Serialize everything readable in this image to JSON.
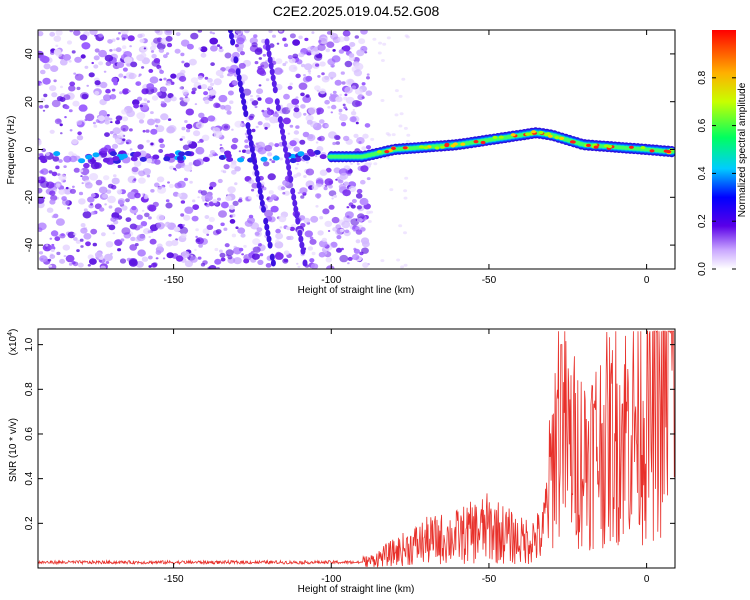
{
  "title": "C2E2.2025.019.04.52.G08",
  "colors": {
    "line": "#e8302a",
    "scatter_purple": "#8a2be2",
    "band_center": "#ff0000"
  },
  "chart_data": [
    {
      "type": "heatmap",
      "xlabel": "Height of straight line (km)",
      "ylabel": "Frequency (Hz)",
      "xlim": [
        -193,
        9
      ],
      "ylim": [
        -50,
        50
      ],
      "xticks": [
        -150,
        -100,
        -50,
        0
      ],
      "yticks": [
        -40,
        -20,
        0,
        20,
        40
      ],
      "colorbar": {
        "label": "Normalized spectral amplitude",
        "range": [
          0,
          1
        ],
        "ticks": [
          0.0,
          0.2,
          0.4,
          0.6,
          0.8
        ],
        "colormap": "rainbow"
      },
      "ridge": {
        "x": [
          -100,
          -90,
          -80,
          -70,
          -60,
          -50,
          -40,
          -35,
          -30,
          -20,
          -10,
          0,
          9
        ],
        "y": [
          -3,
          -3,
          0,
          1,
          2,
          4,
          6,
          7,
          6,
          2,
          1,
          0,
          -1
        ]
      }
    },
    {
      "type": "line",
      "xlabel": "Height of straight line (km)",
      "ylabel": "SNR (10 * v/v)",
      "yscale_label": "(x10",
      "yscale_exp": "4",
      "yscale_close": ")",
      "xlim": [
        -193,
        9
      ],
      "ylim": [
        0,
        1.07
      ],
      "xticks": [
        -150,
        -100,
        -50,
        0
      ],
      "yticks": [
        0.2,
        0.4,
        0.6,
        0.8,
        1.0
      ],
      "series": [
        {
          "x": [
            -193,
            -170,
            -150,
            -130,
            -110,
            -95,
            -88,
            -80,
            -70,
            -60,
            -50,
            -40,
            -33,
            -30,
            -28,
            -25,
            -20,
            -15,
            -10,
            -5,
            0,
            5,
            9
          ],
          "y": [
            0.02,
            0.02,
            0.02,
            0.025,
            0.02,
            0.025,
            0.03,
            0.07,
            0.12,
            0.14,
            0.18,
            0.12,
            0.14,
            0.45,
            0.7,
            0.55,
            0.5,
            0.55,
            0.6,
            0.65,
            0.68,
            0.72,
            1.05
          ]
        }
      ]
    }
  ]
}
